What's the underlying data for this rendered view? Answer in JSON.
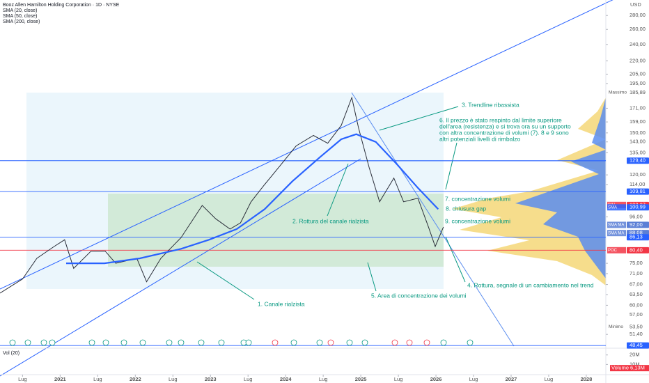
{
  "chart_data": {
    "type": "line",
    "title": "Booz Allen Hamilton Holding Corporation · 1D · NYSE",
    "indicators": [
      "SMA (20, close)",
      "SMA (50, close)",
      "SMA (200, close)"
    ],
    "currency": "USD",
    "log_scale": true,
    "xlim": [
      2020.2,
      2028.26
    ],
    "ylim": [
      48.3,
      304
    ],
    "xticks": [
      {
        "value": 2020.5,
        "label": "Lug"
      },
      {
        "value": 2021,
        "label": "2021"
      },
      {
        "value": 2021.5,
        "label": "Lug"
      },
      {
        "value": 2022,
        "label": "2022"
      },
      {
        "value": 2022.5,
        "label": "Lug"
      },
      {
        "value": 2023,
        "label": "2023"
      },
      {
        "value": 2023.5,
        "label": "Lug"
      },
      {
        "value": 2024,
        "label": "2024"
      },
      {
        "value": 2024.5,
        "label": "Lug"
      },
      {
        "value": 2025,
        "label": "2025"
      },
      {
        "value": 2025.5,
        "label": "Lug"
      },
      {
        "value": 2026,
        "label": "2026"
      },
      {
        "value": 2026.5,
        "label": "Lug"
      },
      {
        "value": 2027,
        "label": "2027"
      },
      {
        "value": 2027.5,
        "label": "Lug"
      },
      {
        "value": 2028,
        "label": "2028"
      }
    ],
    "yticks": [
      {
        "value": 280,
        "label": "280,00"
      },
      {
        "value": 260,
        "label": "260,00"
      },
      {
        "value": 240,
        "label": "240,00"
      },
      {
        "value": 220,
        "label": "220,00"
      },
      {
        "value": 205,
        "label": "205,00"
      },
      {
        "value": 195,
        "label": "195,00"
      },
      {
        "value": 171,
        "label": "171,00"
      },
      {
        "value": 159,
        "label": "159,00"
      },
      {
        "value": 150,
        "label": "150,00"
      },
      {
        "value": 143,
        "label": "143,00"
      },
      {
        "value": 135,
        "label": "135,00"
      },
      {
        "value": 120,
        "label": "120,00"
      },
      {
        "value": 114,
        "label": "114,00"
      },
      {
        "value": 96,
        "label": "96,00"
      },
      {
        "value": 75,
        "label": "75,00"
      },
      {
        "value": 71,
        "label": "71,00"
      },
      {
        "value": 67,
        "label": "67,00"
      },
      {
        "value": 63.5,
        "label": "63,50"
      },
      {
        "value": 60,
        "label": "60,00"
      },
      {
        "value": 57,
        "label": "57,00"
      },
      {
        "value": 51.4,
        "label": "51,40"
      }
    ],
    "price_levels": [
      {
        "tag": "Massimo",
        "value": 185.89,
        "label": "185,89",
        "color": "#9598a1",
        "line": false
      },
      {
        "value": 129.4,
        "label": "129,40",
        "color": "#2962ff",
        "line": true
      },
      {
        "value": 109.81,
        "label": "109,81",
        "color": "#2962ff",
        "line": true
      },
      {
        "tag": "B/H",
        "value": 102.27,
        "label": "102,27",
        "color": "#f23645",
        "line": false
      },
      {
        "tag": "SMA",
        "value": 100.99,
        "label": "100,99",
        "color": "#2962ff",
        "line": false
      },
      {
        "tag": "SMA MA",
        "value": 92,
        "label": "92,00",
        "color": "#5b7fd6",
        "line": false
      },
      {
        "tag": "SMA MA",
        "value": 88.08,
        "label": "88,08",
        "color": "#5b7fd6",
        "line": false
      },
      {
        "value": 86.13,
        "label": "86,13",
        "color": "#2962ff",
        "line": true
      },
      {
        "tag": "POC",
        "value": 80.4,
        "label": "80,40",
        "color": "#f23645",
        "line": true
      },
      {
        "tag": "Minimo",
        "value": 53.5,
        "label": "53,50",
        "color": "#9598a1",
        "line": false
      },
      {
        "value": 48.45,
        "label": "48,45",
        "color": "#2962ff",
        "line": true
      }
    ],
    "series": [
      {
        "name": "Prezzo",
        "color": "#2a2e39",
        "x": [
          2020.2,
          2020.5,
          2020.69,
          2020.92,
          2021.06,
          2021.18,
          2021.41,
          2021.6,
          2021.74,
          2022.02,
          2022.15,
          2022.34,
          2022.61,
          2022.89,
          2023.07,
          2023.26,
          2023.4,
          2023.54,
          2023.72,
          2023.91,
          2024.14,
          2024.37,
          2024.56,
          2024.74,
          2024.88,
          2024.97,
          2025.11,
          2025.25,
          2025.44,
          2025.57,
          2025.76,
          2025.9,
          2025.99,
          2026.1
        ],
        "values": [
          64,
          69,
          77,
          82,
          85,
          73,
          80,
          80,
          75,
          77,
          68,
          77,
          86,
          102,
          95,
          90,
          93,
          104,
          114,
          125,
          140,
          148,
          142,
          156,
          181,
          154,
          125,
          104,
          118,
          104,
          106,
          91,
          82,
          91
        ]
      },
      {
        "name": "SMA (200, close)",
        "color": "#2962ff",
        "x": [
          2021.08,
          2021.59,
          2022.06,
          2022.61,
          2022.98,
          2023.35,
          2023.72,
          2024.09,
          2024.46,
          2024.74,
          2024.94,
          2025.2,
          2025.48,
          2025.76,
          2026.03
        ],
        "values": [
          75,
          75,
          77,
          81,
          85,
          90,
          100,
          116,
          132,
          145,
          149,
          143,
          127,
          112,
          100
        ]
      }
    ],
    "annotations": [
      "1. Canale rialzista",
      "2. Rottura del canale rialzista",
      "3. Trendline ribassista",
      "4. Rottura, segnale di un cambiamento nel trend",
      "5. Area di concentrazione dei volumi",
      [
        "6. Il prezzo è stato respinto dal limite superiore",
        "dell'area (resistenza) e si trova ora su un supporto",
        "con altra concentrazione di volumi (7). 8 e 9 sono",
        "altri potenziali livelli di rimbalzo"
      ],
      "7. concentrazione volumi",
      "8. chiusura gap",
      "9. concentrazione volumi"
    ],
    "volume": {
      "title": "Vol (20)",
      "yticks": [
        {
          "value": 20000000,
          "label": "20M"
        },
        {
          "value": 10000000,
          "label": "10M"
        }
      ],
      "last": {
        "name": "Volume",
        "value": 6130000,
        "label": "6,13M"
      }
    }
  }
}
